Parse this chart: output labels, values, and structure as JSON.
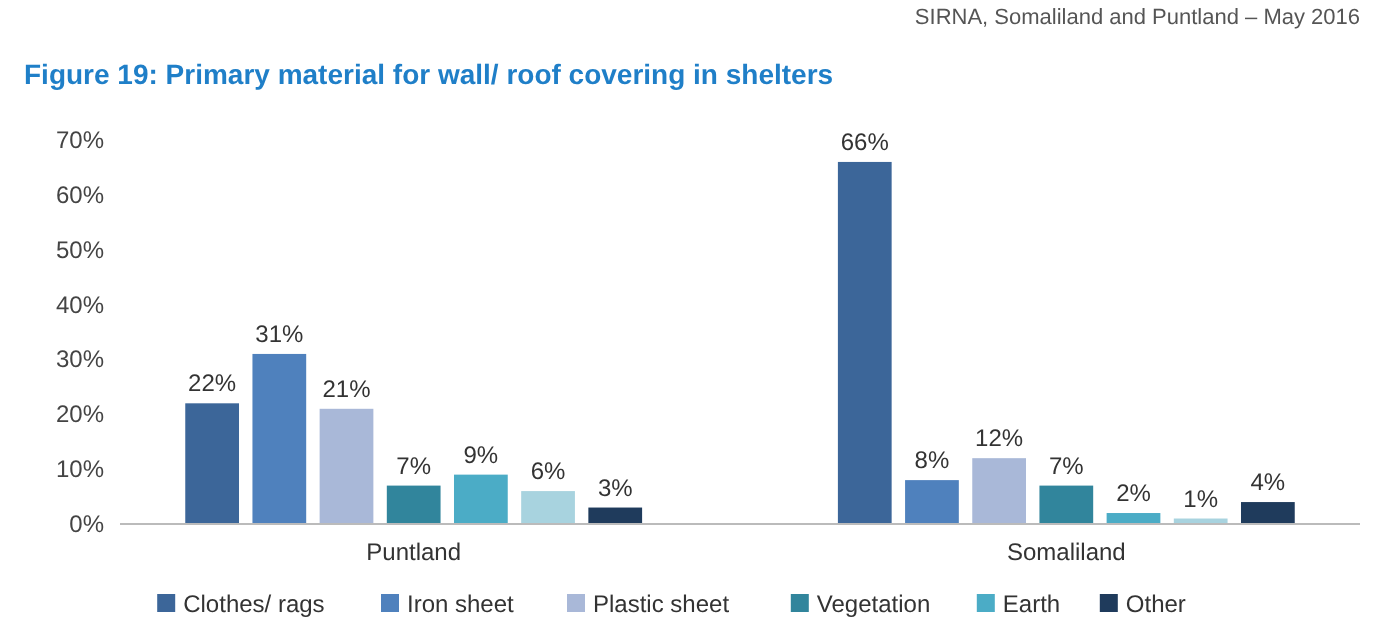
{
  "chart_data": {
    "type": "bar",
    "title": "Figure 19: Primary material for wall/ roof covering in shelters",
    "annotations": [
      "SIRNA, Somaliland and Puntland – May 2016"
    ],
    "categories": [
      "Puntland",
      "Somaliland"
    ],
    "series": [
      {
        "name": "Clothes/ rags",
        "color": "#3c6699",
        "values": [
          22,
          66
        ],
        "value_labels": [
          "22%",
          "66%"
        ]
      },
      {
        "name": "Iron sheet",
        "color": "#4f81bd",
        "values": [
          31,
          8
        ],
        "value_labels": [
          "31%",
          "8%"
        ]
      },
      {
        "name": "Plastic sheet",
        "color": "#a9b8d8",
        "values": [
          21,
          12
        ],
        "value_labels": [
          "21%",
          "12%"
        ]
      },
      {
        "name": "Vegetation",
        "color": "#31859c",
        "values": [
          7,
          7
        ],
        "value_labels": [
          "7%",
          "7%"
        ]
      },
      {
        "name": "Earth",
        "color": "#4bacc6",
        "values": [
          9,
          2
        ],
        "value_labels": [
          "9%",
          "2%"
        ]
      },
      {
        "color": "#a8d3df",
        "values": [
          6,
          1
        ],
        "value_labels": [
          "6%",
          "1%"
        ]
      },
      {
        "name": "Other",
        "color": "#1f3b5c",
        "values": [
          3,
          4
        ],
        "value_labels": [
          "3%",
          "4%"
        ]
      }
    ],
    "ylim": [
      0,
      70
    ],
    "yticks": [
      {
        "value": 0,
        "label": "0%"
      },
      {
        "value": 10,
        "label": "10%"
      },
      {
        "value": 20,
        "label": "20%"
      },
      {
        "value": 30,
        "label": "30%"
      },
      {
        "value": 40,
        "label": "40%"
      },
      {
        "value": 50,
        "label": "50%"
      },
      {
        "value": 60,
        "label": "60%"
      },
      {
        "value": 70,
        "label": "70%"
      }
    ],
    "grid": false,
    "legend": "bottom"
  }
}
